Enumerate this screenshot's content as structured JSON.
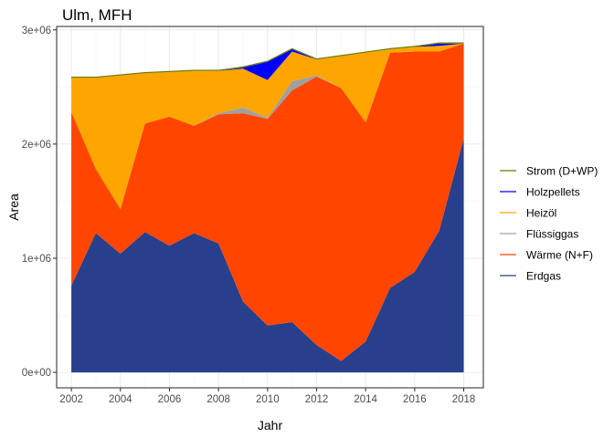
{
  "chart_data": {
    "type": "area",
    "stacked": true,
    "title": "Ulm, MFH",
    "xlabel": "Jahr",
    "ylabel": "Area",
    "xlim": [
      2001.4,
      2018.8
    ],
    "ylim": [
      -135000,
      3030000
    ],
    "x_ticks": [
      2002,
      2004,
      2006,
      2008,
      2010,
      2012,
      2014,
      2016,
      2018
    ],
    "y_ticks": [
      0,
      1000000,
      2000000,
      3000000
    ],
    "y_tick_labels": [
      "0e+00",
      "1e+06",
      "2e+06",
      "3e+06"
    ],
    "grid": true,
    "legend_position": "right",
    "x": [
      2002,
      2003,
      2004,
      2005,
      2006,
      2007,
      2008,
      2009,
      2010,
      2011,
      2012,
      2013,
      2014,
      2015,
      2016,
      2017,
      2018
    ],
    "series": [
      {
        "name": "Erdgas",
        "color": "#283F8C",
        "values": [
          760000,
          1220000,
          1040000,
          1230000,
          1110000,
          1220000,
          1130000,
          620000,
          410000,
          440000,
          240000,
          100000,
          270000,
          740000,
          880000,
          1240000,
          2050000
        ]
      },
      {
        "name": "Wärme (N+F)",
        "color": "#FF4500",
        "values": [
          1520000,
          560000,
          390000,
          950000,
          1130000,
          940000,
          1130000,
          1650000,
          1810000,
          2030000,
          2350000,
          2390000,
          1920000,
          2060000,
          1930000,
          1570000,
          830000
        ]
      },
      {
        "name": "Flüssiggas",
        "color": "#A0A0A0",
        "values": [
          0,
          0,
          0,
          0,
          0,
          0,
          10000,
          50000,
          10000,
          80000,
          10000,
          0,
          0,
          0,
          0,
          0,
          0
        ]
      },
      {
        "name": "Heizöl",
        "color": "#FFA500",
        "values": [
          300000,
          800000,
          1170000,
          440000,
          390000,
          480000,
          370000,
          340000,
          330000,
          260000,
          140000,
          280000,
          610000,
          30000,
          40000,
          50000,
          0
        ]
      },
      {
        "name": "Holzpellets",
        "color": "#0000FF",
        "values": [
          0,
          0,
          0,
          0,
          0,
          0,
          0,
          10000,
          160000,
          20000,
          0,
          0,
          0,
          0,
          0,
          20000,
          0
        ]
      },
      {
        "name": "Strom (D+WP)",
        "color": "#6B7A00",
        "values": [
          10000,
          10000,
          10000,
          10000,
          10000,
          10000,
          10000,
          10000,
          10000,
          10000,
          10000,
          10000,
          10000,
          10000,
          10000,
          10000,
          10000
        ]
      }
    ],
    "legend_order": [
      "Strom (D+WP)",
      "Holzpellets",
      "Heizöl",
      "Flüssiggas",
      "Wärme (N+F)",
      "Erdgas"
    ]
  }
}
